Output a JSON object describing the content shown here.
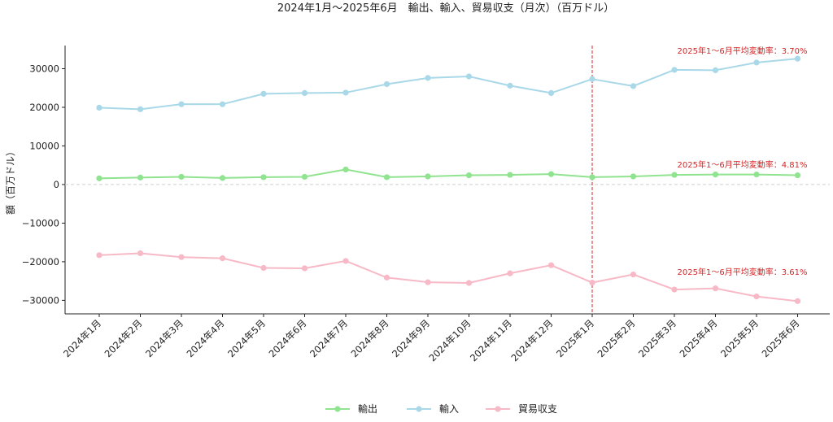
{
  "chart_data": {
    "type": "line",
    "title": "2024年1月～2025年6月　輸出、輸入、貿易収支（月次）（百万ドル）",
    "xlabel": "",
    "ylabel": "額（百万ドル）",
    "categories": [
      "2024年1月",
      "2024年2月",
      "2024年3月",
      "2024年4月",
      "2024年5月",
      "2024年6月",
      "2024年7月",
      "2024年8月",
      "2024年9月",
      "2024年10月",
      "2024年11月",
      "2024年12月",
      "2025年1月",
      "2025年2月",
      "2025年3月",
      "2025年4月",
      "2025年5月",
      "2025年6月"
    ],
    "ylim": [
      -33500,
      36000
    ],
    "yticks": [
      30000,
      20000,
      10000,
      0,
      -10000,
      -20000,
      -30000
    ],
    "ytick_labels": [
      "30000",
      "20000",
      "10000",
      "0",
      "−10000",
      "−20000",
      "−30000"
    ],
    "grid": false,
    "zero_line": true,
    "legend_position": "bottom-center",
    "series": [
      {
        "name": "輸出",
        "color": "#90e38f",
        "values": [
          1600,
          1800,
          2000,
          1700,
          1900,
          2000,
          3900,
          1900,
          2100,
          2400,
          2500,
          2700,
          1900,
          2100,
          2500,
          2600,
          2600,
          2400
        ]
      },
      {
        "name": "輸入",
        "color": "#a9d8e8",
        "values": [
          19900,
          19500,
          20800,
          20800,
          23500,
          23700,
          23800,
          26000,
          27600,
          28000,
          25600,
          23700,
          27300,
          25500,
          29700,
          29600,
          31600,
          32600
        ]
      },
      {
        "name": "貿易収支",
        "color": "#f8b9c7",
        "values": [
          -18300,
          -17800,
          -18800,
          -19100,
          -21600,
          -21700,
          -19800,
          -24100,
          -25300,
          -25500,
          -23000,
          -20900,
          -25400,
          -23300,
          -27200,
          -26900,
          -29000,
          -30200
        ]
      }
    ],
    "vline": {
      "category_index": 12,
      "color": "#d62728"
    },
    "annotations": [
      {
        "text": "2025年1～6月平均変動率：3.70%",
        "anchor_category": 17,
        "y": 34500,
        "color": "#d62728"
      },
      {
        "text": "2025年1～6月平均変動率：4.81%",
        "anchor_category": 17,
        "y": 5000,
        "color": "#d62728"
      },
      {
        "text": "2025年1～6月平均変動率：3.61%",
        "anchor_category": 17,
        "y": -22800,
        "color": "#d62728"
      }
    ]
  }
}
